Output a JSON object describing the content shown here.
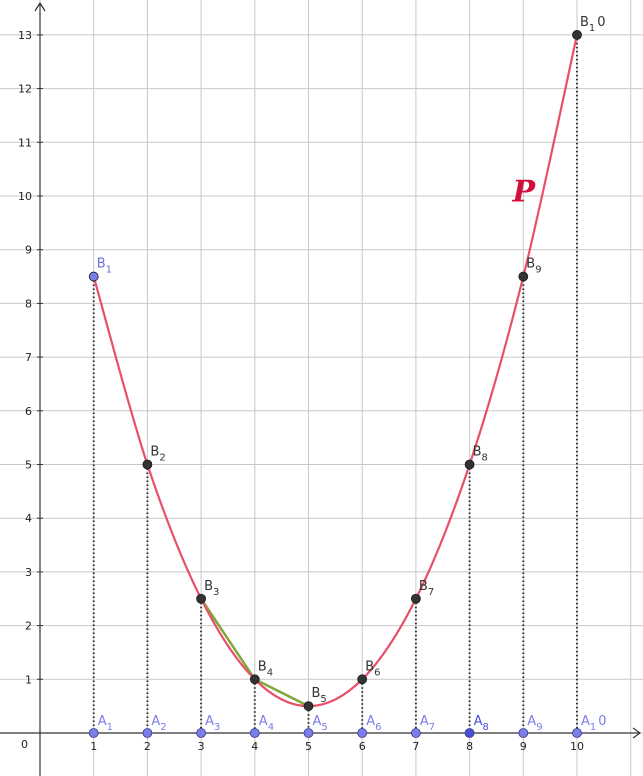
{
  "chart_data": {
    "type": "line",
    "title": "",
    "xlabel": "",
    "ylabel": "",
    "xlim": [
      -0.8,
      10.65
    ],
    "ylim": [
      -0.8,
      13.6
    ],
    "grid": true,
    "x_ticks": [
      "0",
      "1",
      "2",
      "3",
      "4",
      "5",
      "6",
      "7",
      "8",
      "9",
      "10"
    ],
    "y_ticks": [
      "1",
      "2",
      "3",
      "4",
      "5",
      "6",
      "7",
      "8",
      "9",
      "10",
      "11",
      "12",
      "13"
    ],
    "origin_label": "0",
    "curve": {
      "name": "P",
      "color": "#e8506a",
      "x": [
        1,
        2,
        3,
        4,
        5,
        6,
        7,
        8,
        9,
        10
      ],
      "y": [
        8.5,
        5,
        2.5,
        1,
        0.5,
        1,
        2.5,
        5,
        8.5,
        13
      ]
    },
    "secant": {
      "from_x": 3,
      "to_x": 5,
      "color": "#7fa83a"
    },
    "B_points": [
      {
        "base": "B",
        "sub": "1",
        "x": 1,
        "y": 8.5,
        "color": "#7a7ee8",
        "label_color": "#6b6fd8"
      },
      {
        "base": "B",
        "sub": "2",
        "x": 2,
        "y": 5,
        "color": "#333333",
        "label_color": "#333333"
      },
      {
        "base": "B",
        "sub": "3",
        "x": 3,
        "y": 2.5,
        "color": "#333333",
        "label_color": "#333333"
      },
      {
        "base": "B",
        "sub": "4",
        "x": 4,
        "y": 1,
        "color": "#333333",
        "label_color": "#333333"
      },
      {
        "base": "B",
        "sub": "5",
        "x": 5,
        "y": 0.5,
        "color": "#333333",
        "label_color": "#333333"
      },
      {
        "base": "B",
        "sub": "6",
        "x": 6,
        "y": 1,
        "color": "#333333",
        "label_color": "#333333"
      },
      {
        "base": "B",
        "sub": "7",
        "x": 7,
        "y": 2.5,
        "color": "#333333",
        "label_color": "#333333"
      },
      {
        "base": "B",
        "sub": "8",
        "x": 8,
        "y": 5,
        "color": "#333333",
        "label_color": "#333333"
      },
      {
        "base": "B",
        "sub": "9",
        "x": 9,
        "y": 8.5,
        "color": "#333333",
        "label_color": "#333333"
      },
      {
        "base": "B",
        "sub": "1",
        "tail": "0",
        "x": 10,
        "y": 13,
        "color": "#333333",
        "label_color": "#333333"
      }
    ],
    "A_points": [
      {
        "base": "A",
        "sub": "1",
        "x": 1,
        "y": 0,
        "color": "#7a7ee8"
      },
      {
        "base": "A",
        "sub": "2",
        "x": 2,
        "y": 0,
        "color": "#7a7ee8"
      },
      {
        "base": "A",
        "sub": "3",
        "x": 3,
        "y": 0,
        "color": "#7a7ee8"
      },
      {
        "base": "A",
        "sub": "4",
        "x": 4,
        "y": 0,
        "color": "#7a7ee8"
      },
      {
        "base": "A",
        "sub": "5",
        "x": 5,
        "y": 0,
        "color": "#7a7ee8"
      },
      {
        "base": "A",
        "sub": "6",
        "x": 6,
        "y": 0,
        "color": "#7a7ee8"
      },
      {
        "base": "A",
        "sub": "7",
        "x": 7,
        "y": 0,
        "color": "#7a7ee8"
      },
      {
        "base": "A",
        "sub": "8",
        "x": 8,
        "y": 0,
        "color": "#4a4fd8"
      },
      {
        "base": "A",
        "sub": "9",
        "x": 9,
        "y": 0,
        "color": "#7a7ee8"
      },
      {
        "base": "A",
        "sub": "1",
        "tail": "0",
        "x": 10,
        "y": 0,
        "color": "#7a7ee8"
      }
    ]
  },
  "colors": {
    "grid": "#c8c8c8",
    "axis": "#333333",
    "dotted": "#333333"
  }
}
